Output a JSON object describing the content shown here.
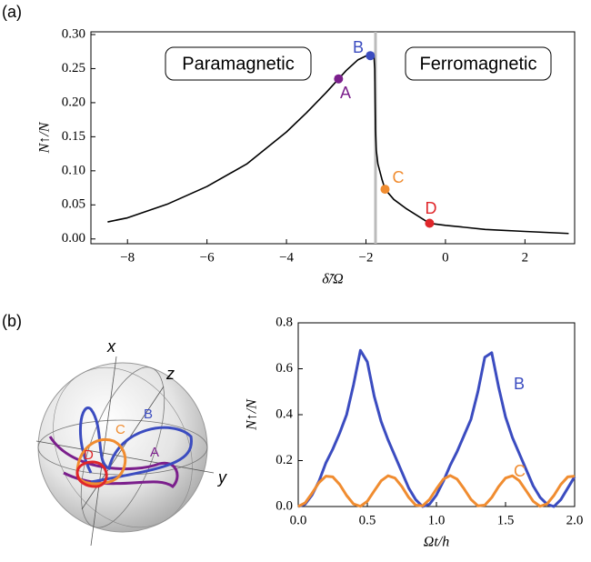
{
  "panels": [
    "(a)",
    "(b)"
  ],
  "sphere": {
    "axes": [
      "x",
      "z",
      "y"
    ],
    "curves": [
      "A",
      "B",
      "C",
      "D"
    ]
  },
  "chart_data": [
    {
      "type": "line",
      "xlabel": "δ̃/Ω",
      "ylabel": "N↑/N",
      "annotations": [
        "Paramagnetic",
        "Ferromagnetic"
      ],
      "x": [
        -8.5,
        -8,
        -7,
        -6,
        -5,
        -4,
        -3.5,
        -3,
        -2.5,
        -2.2,
        -1.95,
        -1.85,
        -1.8,
        -1.78,
        -1.77,
        -1.76,
        -1.74,
        -1.7,
        -1.6,
        -1.52,
        -1.3,
        -1,
        -0.4,
        0,
        1,
        2,
        3.1
      ],
      "series": [
        {
          "color": "#000000",
          "values": [
            0.025,
            0.031,
            0.051,
            0.077,
            0.11,
            0.157,
            0.185,
            0.215,
            0.247,
            0.263,
            0.27,
            0.271,
            0.27,
            0.25,
            0.2,
            0.16,
            0.13,
            0.11,
            0.088,
            0.073,
            0.058,
            0.045,
            0.023,
            0.02,
            0.014,
            0.011,
            0.008
          ]
        }
      ],
      "points": [
        {
          "label": "A",
          "x": -2.69,
          "y": 0.235,
          "color": "#7b1f8c"
        },
        {
          "label": "B",
          "x": -1.89,
          "y": 0.269,
          "color": "#3b4cc0"
        },
        {
          "label": "C",
          "x": -1.52,
          "y": 0.073,
          "color": "#f08c30"
        },
        {
          "label": "D",
          "x": -0.4,
          "y": 0.023,
          "color": "#e0262a"
        }
      ],
      "vline": -1.76,
      "xlim": [
        -8.92,
        3.25
      ],
      "ylim": [
        -0.007,
        0.304
      ],
      "xticks": [
        {
          "value": -8,
          "label": "−8"
        },
        {
          "value": -6,
          "label": "−6"
        },
        {
          "value": -4,
          "label": "−4"
        },
        {
          "value": -2,
          "label": "−2"
        },
        0,
        2
      ],
      "yticks": [
        {
          "value": 0,
          "label": "0.00"
        },
        {
          "value": 0.05,
          "label": "0.05"
        },
        {
          "value": 0.1,
          "label": "0.10"
        },
        {
          "value": 0.15,
          "label": "0.15"
        },
        {
          "value": 0.2,
          "label": "0.20"
        },
        {
          "value": 0.25,
          "label": "0.25"
        },
        {
          "value": 0.3,
          "label": "0.30"
        }
      ]
    },
    {
      "type": "line",
      "xlabel": "Ωt/h",
      "ylabel": "N↑/N",
      "x": [
        0,
        0.05,
        0.1,
        0.15,
        0.2,
        0.25,
        0.3,
        0.35,
        0.4,
        0.45,
        0.5,
        0.55,
        0.6,
        0.65,
        0.7,
        0.75,
        0.8,
        0.85,
        0.9,
        0.95,
        1,
        1.05,
        1.1,
        1.15,
        1.2,
        1.25,
        1.3,
        1.35,
        1.4,
        1.45,
        1.5,
        1.55,
        1.6,
        1.65,
        1.7,
        1.75,
        1.8,
        1.85,
        1.9,
        1.95,
        2
      ],
      "series": [
        {
          "name": "B",
          "color": "#3b4cc0",
          "values": [
            0,
            0.01,
            0.05,
            0.11,
            0.19,
            0.25,
            0.32,
            0.4,
            0.53,
            0.68,
            0.63,
            0.48,
            0.37,
            0.29,
            0.22,
            0.15,
            0.08,
            0.03,
            0,
            0.01,
            0.05,
            0.11,
            0.18,
            0.24,
            0.31,
            0.38,
            0.5,
            0.65,
            0.67,
            0.52,
            0.39,
            0.3,
            0.23,
            0.16,
            0.09,
            0.04,
            0.01,
            0,
            0.03,
            0.08,
            0.13
          ]
        },
        {
          "name": "C",
          "color": "#f08c30",
          "values": [
            0,
            0.016,
            0.058,
            0.104,
            0.132,
            0.129,
            0.096,
            0.048,
            0.011,
            0.001,
            0.023,
            0.068,
            0.112,
            0.134,
            0.124,
            0.087,
            0.039,
            0.006,
            0.003,
            0.031,
            0.077,
            0.119,
            0.135,
            0.119,
            0.077,
            0.031,
            0.003,
            0.006,
            0.039,
            0.087,
            0.124,
            0.134,
            0.112,
            0.068,
            0.023,
            0.001,
            0.011,
            0.048,
            0.096,
            0.129,
            0.132
          ]
        }
      ],
      "xlim": [
        0,
        2
      ],
      "ylim": [
        0,
        0.8
      ],
      "xticks": [
        {
          "value": 0,
          "label": "0.0"
        },
        0.5,
        {
          "value": 1,
          "label": "1.0"
        },
        1.5,
        {
          "value": 2,
          "label": "2.0"
        }
      ],
      "yticks": [
        {
          "value": 0,
          "label": "0.0"
        },
        0.2,
        0.4,
        0.6,
        0.8
      ]
    }
  ]
}
